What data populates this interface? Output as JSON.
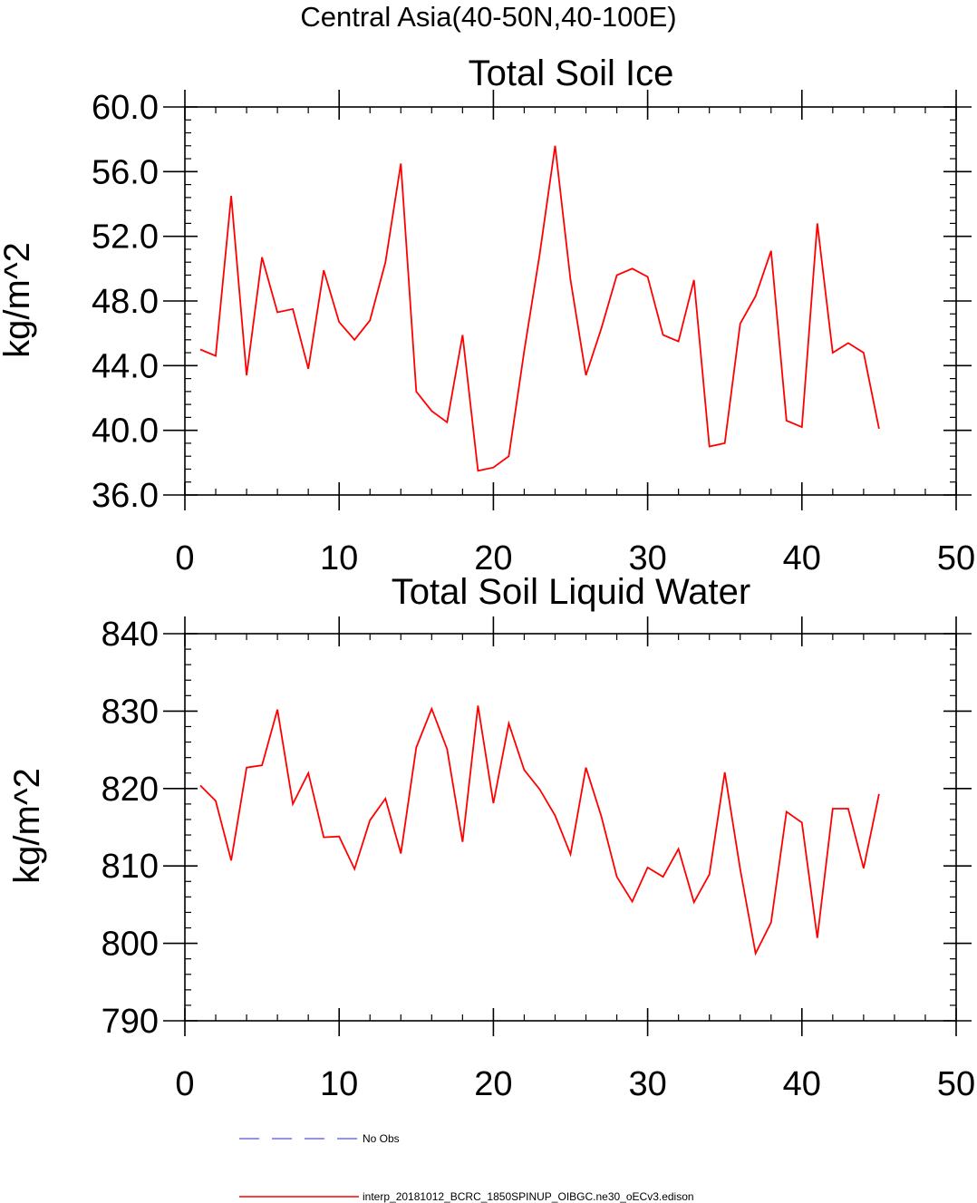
{
  "figure": {
    "suptitle": "Central Asia(40-50N,40-100E)"
  },
  "chart_data": [
    {
      "type": "line",
      "title": "Total Soil Ice",
      "xlabel": "",
      "ylabel": "kg/m^2",
      "xlim": [
        0,
        50
      ],
      "ylim": [
        36,
        60
      ],
      "xticks": [
        0,
        10,
        20,
        30,
        40,
        50
      ],
      "xtick_labels": [
        "0",
        "10",
        "20",
        "30",
        "40",
        "50"
      ],
      "yticks": [
        36,
        40,
        44,
        48,
        52,
        56,
        60
      ],
      "ytick_labels": [
        "36.0",
        "40.0",
        "44.0",
        "48.0",
        "52.0",
        "56.0",
        "60.0"
      ],
      "grid": false,
      "series": [
        {
          "name": "interp_20181012_BCRC_1850SPINUP_OIBGC.ne30_oECv3.edison",
          "color": "#ff0000",
          "x": [
            1,
            2,
            3,
            4,
            5,
            6,
            7,
            8,
            9,
            10,
            11,
            12,
            13,
            14,
            15,
            16,
            17,
            18,
            19,
            20,
            21,
            22,
            23,
            24,
            25,
            26,
            27,
            28,
            29,
            30,
            31,
            32,
            33,
            34,
            35,
            36,
            37,
            38,
            39,
            40,
            41,
            42,
            43,
            44,
            45
          ],
          "values": [
            45.0,
            44.6,
            54.5,
            43.4,
            50.7,
            47.3,
            47.5,
            43.8,
            49.9,
            46.7,
            45.6,
            46.8,
            50.4,
            56.5,
            42.4,
            41.2,
            40.5,
            45.9,
            37.5,
            37.7,
            38.4,
            44.9,
            50.9,
            57.6,
            49.3,
            43.4,
            46.3,
            49.6,
            50.0,
            49.5,
            45.9,
            45.5,
            49.3,
            39.0,
            39.2,
            46.6,
            48.3,
            51.1,
            40.6,
            40.2,
            52.8,
            44.8,
            45.4,
            44.8,
            40.1
          ]
        }
      ]
    },
    {
      "type": "line",
      "title": "Total Soil Liquid Water",
      "xlabel": "",
      "ylabel": "kg/m^2",
      "xlim": [
        0,
        50
      ],
      "ylim": [
        790,
        840
      ],
      "xticks": [
        0,
        10,
        20,
        30,
        40,
        50
      ],
      "xtick_labels": [
        "0",
        "10",
        "20",
        "30",
        "40",
        "50"
      ],
      "yticks": [
        790,
        800,
        810,
        820,
        830,
        840
      ],
      "ytick_labels": [
        "790",
        "800",
        "810",
        "820",
        "830",
        "840"
      ],
      "grid": false,
      "series": [
        {
          "name": "interp_20181012_BCRC_1850SPINUP_OIBGC.ne30_oECv3.edison",
          "color": "#ff0000",
          "x": [
            1,
            2,
            3,
            4,
            5,
            6,
            7,
            8,
            9,
            10,
            11,
            12,
            13,
            14,
            15,
            16,
            17,
            18,
            19,
            20,
            21,
            22,
            23,
            24,
            25,
            26,
            27,
            28,
            29,
            30,
            31,
            32,
            33,
            34,
            35,
            36,
            37,
            38,
            39,
            40,
            41,
            42,
            43,
            44,
            45
          ],
          "values": [
            820.4,
            818.4,
            810.7,
            822.7,
            823.0,
            830.2,
            818.0,
            822.0,
            813.7,
            813.8,
            809.6,
            815.9,
            818.7,
            811.6,
            825.3,
            830.3,
            825.1,
            813.1,
            830.7,
            818.1,
            828.4,
            822.4,
            819.9,
            816.5,
            811.5,
            822.7,
            816.4,
            808.6,
            805.4,
            809.8,
            808.6,
            812.2,
            805.3,
            808.9,
            822.1,
            809.6,
            798.7,
            802.7,
            817.0,
            815.6,
            800.7,
            817.4,
            817.4,
            809.7,
            819.3
          ]
        }
      ]
    }
  ],
  "legend": {
    "placement": "bottom-left",
    "items": [
      {
        "label": "No Obs",
        "color": "#6b6bff",
        "style": "dashed"
      },
      {
        "label": "interp_20181012_BCRC_1850SPINUP_OIBGC.ne30_oECv3.edison",
        "color": "#ff0000",
        "style": "solid"
      }
    ]
  }
}
